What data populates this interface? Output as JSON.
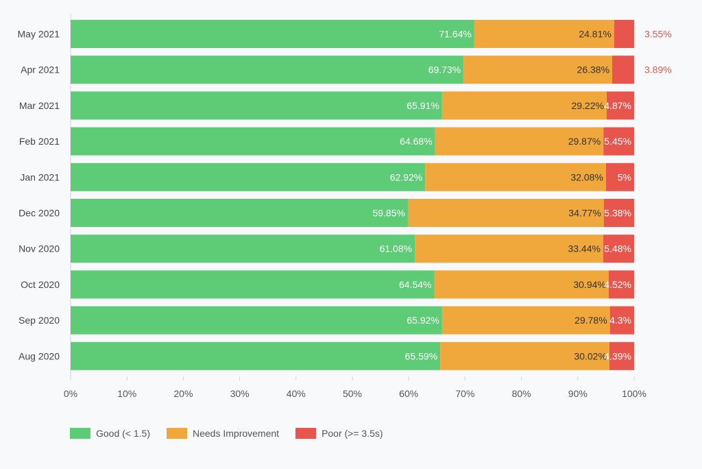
{
  "chart_data": {
    "type": "bar",
    "orientation": "horizontal",
    "stacked": true,
    "title": "",
    "categories": [
      "May 2021",
      "Apr 2021",
      "Mar 2021",
      "Feb 2021",
      "Jan 2021",
      "Dec 2020",
      "Nov 2020",
      "Oct 2020",
      "Sep 2020",
      "Aug 2020"
    ],
    "series": [
      {
        "name": "Good (< 1.5)",
        "color": "#5ecb77",
        "values": [
          71.64,
          69.73,
          65.91,
          64.68,
          62.92,
          59.85,
          61.08,
          64.54,
          65.92,
          65.59
        ]
      },
      {
        "name": "Needs Improvement",
        "color": "#f0a83c",
        "values": [
          24.81,
          26.38,
          29.22,
          29.87,
          32.08,
          34.77,
          33.44,
          30.94,
          29.78,
          30.02
        ]
      },
      {
        "name": "Poor (>= 3.5s)",
        "color": "#e8554c",
        "values": [
          3.55,
          3.89,
          4.87,
          5.45,
          5,
          5.38,
          5.48,
          4.52,
          4.3,
          4.39
        ]
      }
    ],
    "xlim": [
      0,
      100
    ],
    "xticks": [
      "0%",
      "10%",
      "20%",
      "30%",
      "40%",
      "50%",
      "60%",
      "70%",
      "80%",
      "90%",
      "100%"
    ],
    "legend_position": "bottom-left"
  }
}
